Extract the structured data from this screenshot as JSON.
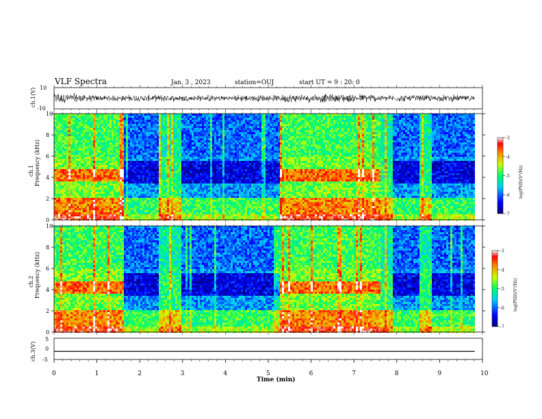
{
  "header": {
    "title": "VLF Spectra",
    "date": "Jan. 3 , 2023",
    "station": "station=OUJ",
    "start": "start UT = 9 : 20: 0"
  },
  "chart_data": {
    "type": "heatmap",
    "x_axis": {
      "label": "Time (min)",
      "range": [
        0,
        10
      ],
      "ticks": [
        "0",
        "1",
        "2",
        "3",
        "4",
        "5",
        "6",
        "7",
        "8",
        "9",
        "10"
      ]
    },
    "panels": [
      {
        "id": "ch1-waveform",
        "type": "line",
        "ylabel": "ch.1(V)",
        "ylim": [
          -10,
          10
        ],
        "yticks": [
          "10",
          "-10"
        ],
        "data_end_min": 9.82,
        "amplitude_v": 3.5
      },
      {
        "id": "ch1-spectrogram",
        "type": "heatmap",
        "ylabel_top": "ch.1",
        "ylabel": "Frequency (kHz)",
        "ylim": [
          0,
          10
        ],
        "yticks": [
          "0",
          "2",
          "4",
          "6",
          "8",
          "10"
        ],
        "colorbar": {
          "label": "log(PSD)(V²/Hz)",
          "range": [
            -7,
            -3
          ],
          "ticks": [
            "-3",
            "-4",
            "-5",
            "-6",
            "-7"
          ]
        },
        "segments": [
          {
            "start": 0.0,
            "end": 0.6,
            "level": "high"
          },
          {
            "start": 0.6,
            "end": 1.6,
            "level": "high"
          },
          {
            "start": 1.6,
            "end": 2.4,
            "level": "low"
          },
          {
            "start": 2.4,
            "end": 2.95,
            "level": "mid"
          },
          {
            "start": 2.95,
            "end": 5.25,
            "level": "low"
          },
          {
            "start": 5.25,
            "end": 7.6,
            "level": "high"
          },
          {
            "start": 7.6,
            "end": 7.9,
            "level": "mid"
          },
          {
            "start": 7.9,
            "end": 8.5,
            "level": "low"
          },
          {
            "start": 8.5,
            "end": 8.8,
            "level": "mid"
          },
          {
            "start": 8.8,
            "end": 9.82,
            "level": "low"
          }
        ]
      },
      {
        "id": "ch2-spectrogram",
        "type": "heatmap",
        "ylabel_top": "ch.2",
        "ylabel": "Frequency (kHz)",
        "ylim": [
          0,
          10
        ],
        "yticks": [
          "0",
          "2",
          "4",
          "6",
          "8",
          "10"
        ],
        "colorbar": {
          "label": "log(PSD)(V²/Hz)",
          "range": [
            -7,
            -3
          ],
          "ticks": [
            "-3",
            "-4",
            "-5",
            "-6",
            "-7"
          ]
        },
        "segments": [
          {
            "start": 0.0,
            "end": 0.6,
            "level": "high"
          },
          {
            "start": 0.6,
            "end": 1.6,
            "level": "high"
          },
          {
            "start": 1.6,
            "end": 2.4,
            "level": "low"
          },
          {
            "start": 2.4,
            "end": 2.95,
            "level": "mid"
          },
          {
            "start": 2.95,
            "end": 5.25,
            "level": "low"
          },
          {
            "start": 5.25,
            "end": 7.6,
            "level": "high"
          },
          {
            "start": 7.6,
            "end": 7.9,
            "level": "mid"
          },
          {
            "start": 7.9,
            "end": 8.5,
            "level": "low"
          },
          {
            "start": 8.5,
            "end": 8.8,
            "level": "mid"
          },
          {
            "start": 8.8,
            "end": 9.82,
            "level": "low"
          }
        ]
      },
      {
        "id": "ch3-waveform",
        "type": "line",
        "ylabel": "ch.3(V)",
        "ylim": [
          -5,
          5
        ],
        "yticks": [
          "5",
          "0",
          "-5"
        ],
        "constant_value_v": -1.2,
        "data_end_min": 9.82
      }
    ]
  }
}
